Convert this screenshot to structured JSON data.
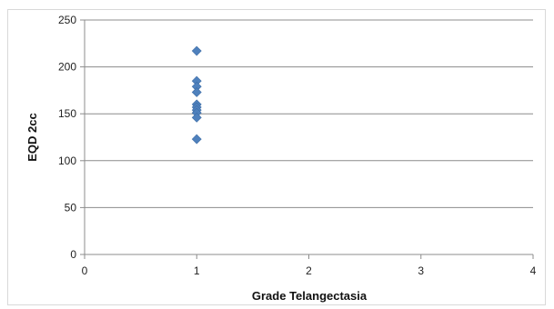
{
  "chart_data": {
    "type": "scatter",
    "title": "",
    "xlabel": "Grade Telangectasia",
    "ylabel": "EQD 2cc",
    "xlim": [
      0,
      4
    ],
    "ylim": [
      0,
      250
    ],
    "x_ticks": [
      0,
      1,
      2,
      3,
      4
    ],
    "y_ticks": [
      0,
      50,
      100,
      150,
      200,
      250
    ],
    "grid": "horizontal",
    "marker": "diamond",
    "color": "#4f81bd",
    "points": [
      {
        "x": 1,
        "y": 217
      },
      {
        "x": 1,
        "y": 185
      },
      {
        "x": 1,
        "y": 179
      },
      {
        "x": 1,
        "y": 173
      },
      {
        "x": 1,
        "y": 160
      },
      {
        "x": 1,
        "y": 157
      },
      {
        "x": 1,
        "y": 154
      },
      {
        "x": 1,
        "y": 151
      },
      {
        "x": 1,
        "y": 146
      },
      {
        "x": 1,
        "y": 123
      }
    ]
  }
}
